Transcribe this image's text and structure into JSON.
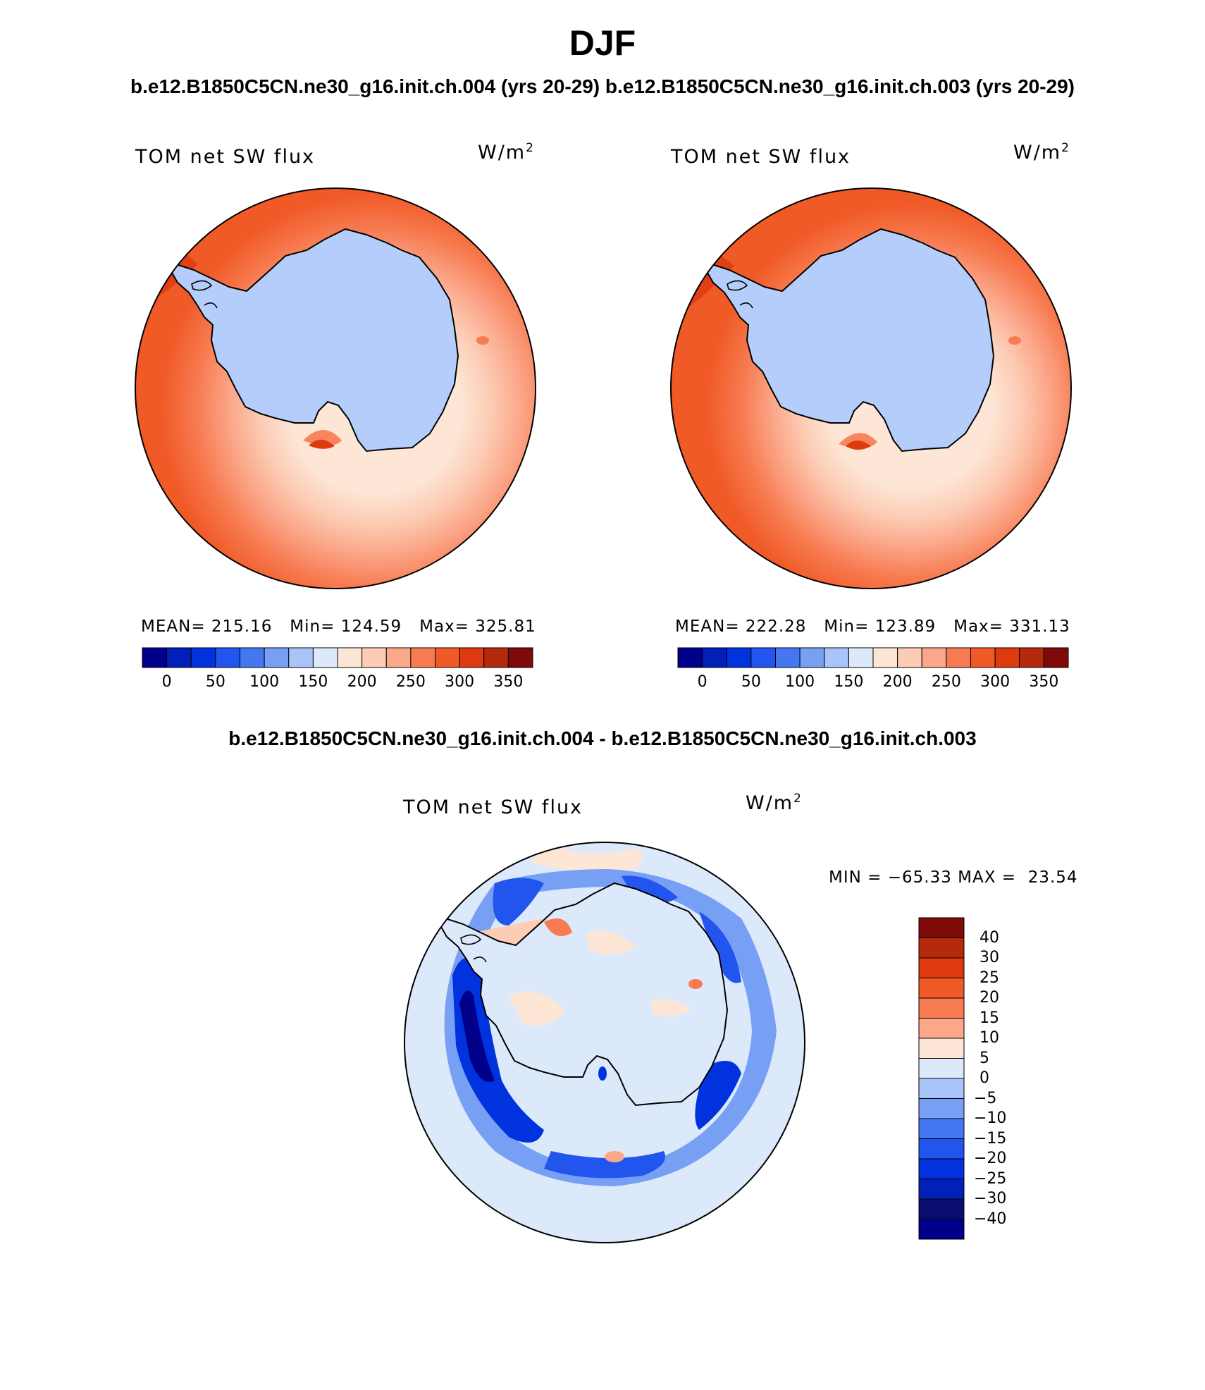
{
  "header": {
    "title": "DJF",
    "subtitle": "b.e12.B1850C5CN.ne30_g16.init.ch.004 (yrs 20-29) b.e12.B1850C5CN.ne30_g16.init.ch.003 (yrs 20-29)",
    "diff_title": "b.e12.B1850C5CN.ne30_g16.init.ch.004 - b.e12.B1850C5CN.ne30_g16.init.ch.003"
  },
  "panels": {
    "left": {
      "variable": "TOM net SW flux",
      "units": "W/m",
      "units_sup": "2",
      "stats": "MEAN= 215.16   Min= 124.59   Max= 325.81"
    },
    "right": {
      "variable": "TOM net SW flux",
      "units": "W/m",
      "units_sup": "2",
      "stats": "MEAN= 222.28   Min= 123.89   Max= 331.13"
    },
    "diff": {
      "variable": "TOM net SW flux",
      "units": "W/m",
      "units_sup": "2",
      "stats": "MIN = −65.33 MAX =  23.54"
    }
  },
  "colorbars": {
    "abs": {
      "colors": [
        "#00008b",
        "#0020b8",
        "#0033dd",
        "#2255ee",
        "#4477f0",
        "#77a0f5",
        "#a8c4f9",
        "#dce9fb",
        "#fde6d6",
        "#fcccb4",
        "#fba78a",
        "#f77a50",
        "#f05a26",
        "#dd3a10",
        "#b52a0c",
        "#7e0a0a"
      ],
      "ticks": [
        "0",
        "50",
        "100",
        "150",
        "200",
        "250",
        "300",
        "350"
      ]
    },
    "diff": {
      "colors": [
        "#7e0a0a",
        "#b52a0c",
        "#dd3a10",
        "#f05a26",
        "#f77a50",
        "#fba78a",
        "#fde6d6",
        "#dce9fb",
        "#a8c4f9",
        "#77a0f5",
        "#4477f0",
        "#2255ee",
        "#0033dd",
        "#0020b8",
        "#0a0c70",
        "#00008b"
      ],
      "ticks": [
        "40",
        "30",
        "25",
        "20",
        "15",
        "10",
        "5",
        "0",
        "−5",
        "−10",
        "−15",
        "−20",
        "−25",
        "−30",
        "−40"
      ]
    }
  },
  "map_colors": {
    "ocean_far": "#f05a26",
    "ocean_mid": "#f77a50",
    "ocean_near": "#fba78a",
    "ocean_shelf": "#fcccb4",
    "sea_ice": "#fde6d6",
    "ice_sheet": "#b4cdfa",
    "diff_background": "#dce9fb",
    "diff_strong_negative": "#0033dd",
    "diff_negative": "#4477f0",
    "diff_positive": "#fcccb4"
  }
}
